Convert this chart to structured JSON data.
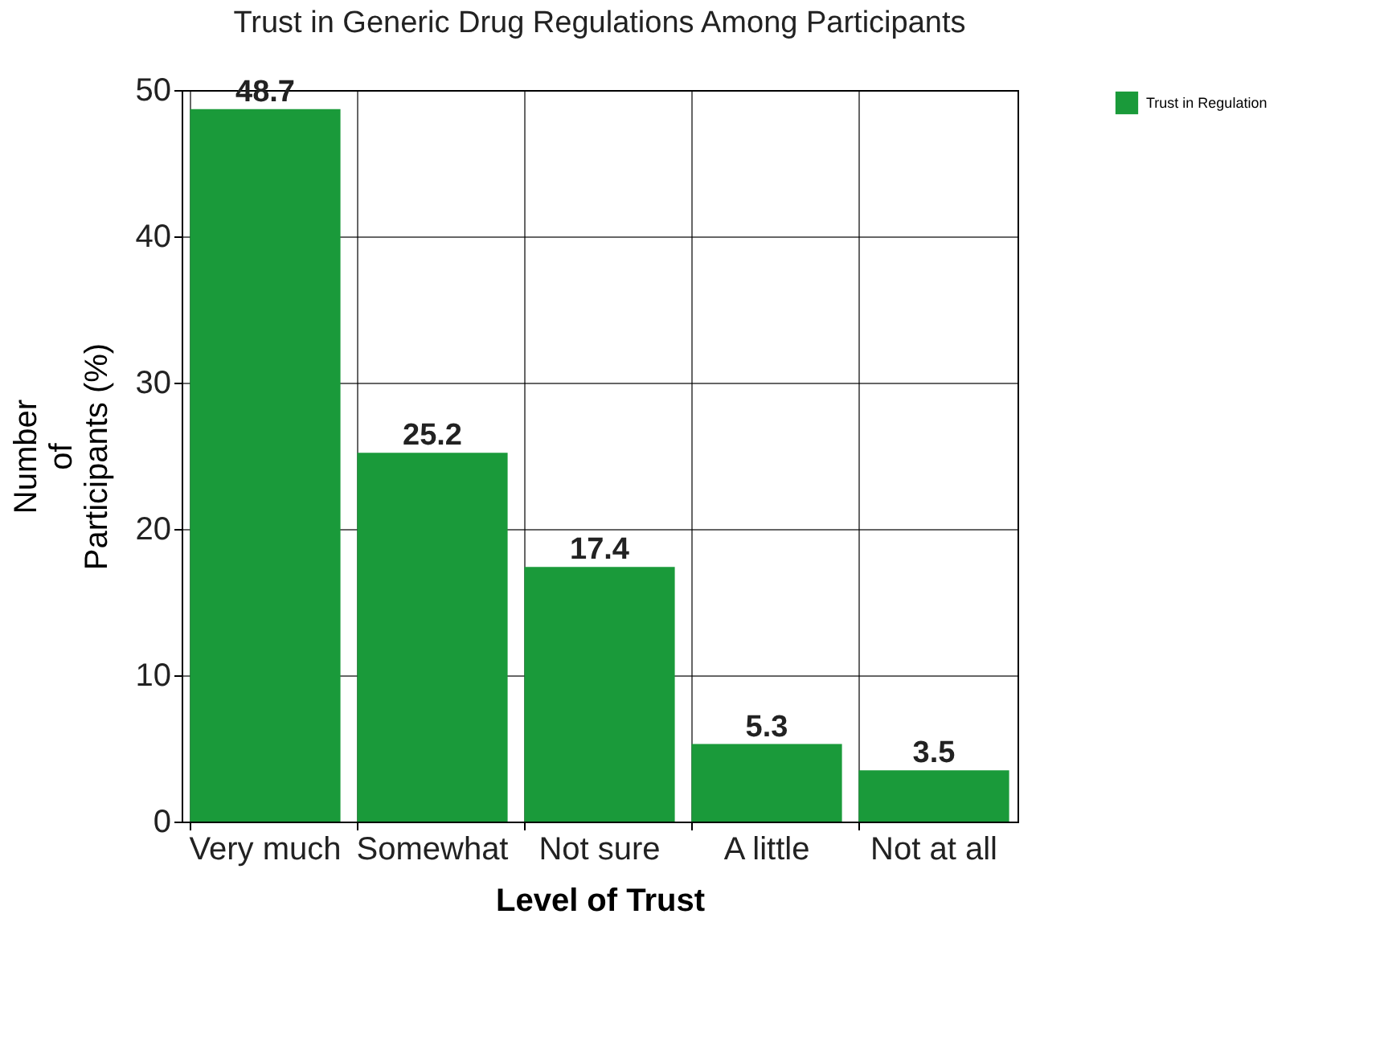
{
  "chart_data": {
    "type": "bar",
    "title": "Trust in Generic Drug Regulations Among Participants",
    "xlabel": "Level of Trust",
    "ylabel": "Number of Participants (%)",
    "categories": [
      "Very\nmuch",
      "Somewhat",
      "Not\nsure",
      "A little",
      "Not at\nall"
    ],
    "series": [
      {
        "name": "Trust in Regulation",
        "color": "#1a9a3a",
        "values": [
          48.7,
          25.2,
          17.4,
          5.3,
          3.5
        ]
      }
    ],
    "ylim": [
      0,
      50
    ],
    "yticks": [
      0,
      10,
      20,
      30,
      40,
      50
    ],
    "grid": true,
    "legend": "right",
    "data_labels": true
  }
}
